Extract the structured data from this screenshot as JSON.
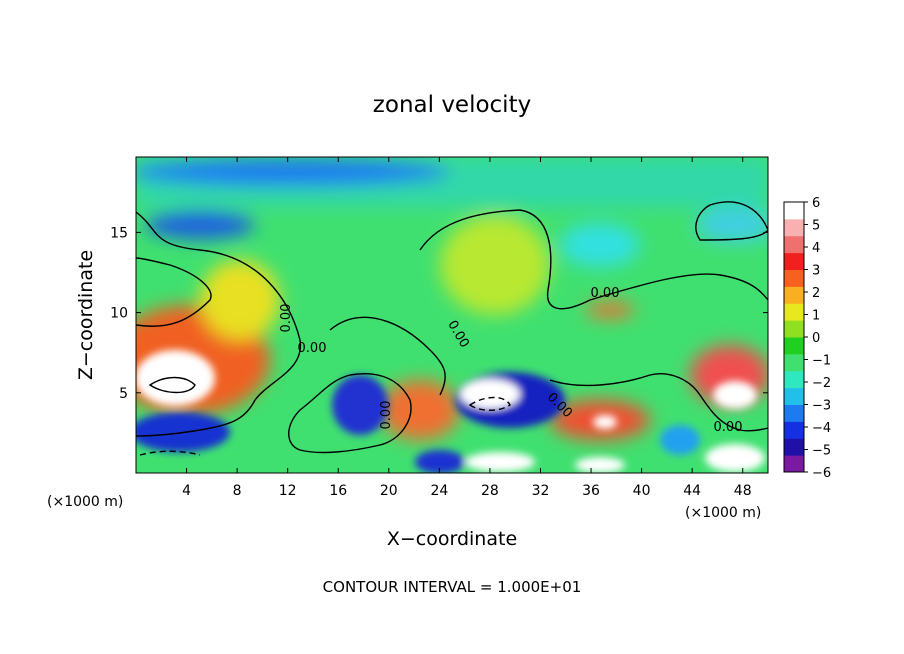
{
  "chart_data": {
    "type": "heatmap",
    "title": "zonal velocity",
    "xlabel": "X−coordinate",
    "ylabel": "Z−coordinate",
    "x_unit_left": "(×1000 m)",
    "x_unit_right": "(×1000 m)",
    "xlim": [
      0,
      50
    ],
    "ylim": [
      0,
      19.7
    ],
    "x_ticks": [
      4,
      8,
      12,
      16,
      20,
      24,
      28,
      32,
      36,
      40,
      44,
      48
    ],
    "y_ticks": [
      5,
      10,
      15
    ],
    "footer": "CONTOUR INTERVAL = 1.000E+01",
    "contour_labels": [
      "0.00",
      "0.00",
      "0.00",
      "0.00",
      "0.00",
      "0.00",
      "0.00"
    ],
    "colorbar": {
      "ticks": [
        "6",
        "5",
        "4",
        "3",
        "2",
        "1",
        "0",
        "−1",
        "−2",
        "−3",
        "−4",
        "−5",
        "−6"
      ],
      "range": [
        -6,
        6
      ],
      "colors": [
        "#7a1aa0",
        "#2010a8",
        "#1530e0",
        "#1e7af0",
        "#20c0e8",
        "#30e8c0",
        "#40e070",
        "#20d020",
        "#90e020",
        "#e8e820",
        "#f8b020",
        "#f86020",
        "#f02020",
        "#f07070",
        "#f8b0b0",
        "#ffffff"
      ]
    },
    "field_samples": [
      {
        "x": 2,
        "z": 5.5,
        "u": 7
      },
      {
        "x": 6,
        "z": 2.2,
        "u": -4
      },
      {
        "x": 6,
        "z": 14.5,
        "u": -3.5
      },
      {
        "x": 18,
        "z": 4,
        "u": -4.5
      },
      {
        "x": 27,
        "z": 4.8,
        "u": 7
      },
      {
        "x": 29,
        "z": 3.5,
        "u": -5
      },
      {
        "x": 36,
        "z": 3,
        "u": 6
      },
      {
        "x": 47,
        "z": 6.5,
        "u": 6
      },
      {
        "x": 47,
        "z": 1.5,
        "u": 7
      },
      {
        "x": 20,
        "z": 18.5,
        "u": -3
      },
      {
        "x": 30,
        "z": 13,
        "u": 2
      },
      {
        "x": 38,
        "z": 14,
        "u": -2
      }
    ]
  }
}
